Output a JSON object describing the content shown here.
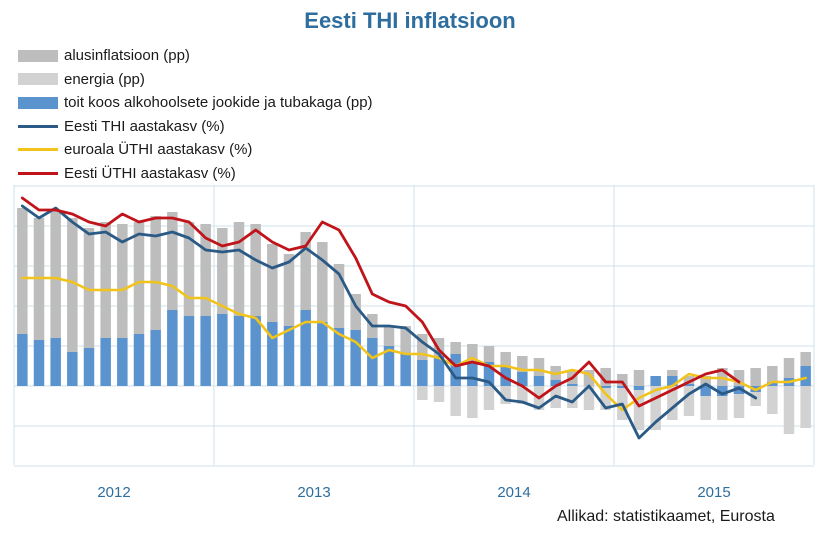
{
  "colors": {
    "core": "#bdbdbd",
    "energy": "#d2d2d2",
    "food": "#5b93cf",
    "est_cpi": "#2a5a85",
    "ea_hicp": "#f2c31a",
    "est_hicp": "#c0141a",
    "grid": "#cfe0ea",
    "axis_text": "#2e6e9e"
  },
  "source": "Allikad: statistikaamet, Eurosta",
  "chart_data": {
    "type": "bar+line",
    "title": "Eesti THI inflatsioon",
    "x_labels": [
      "2012",
      "2013",
      "2014",
      "2015"
    ],
    "months": 48,
    "ylim": [
      -2,
      5
    ],
    "legend": [
      {
        "key": "core",
        "label": "alusinflatsioon (pp)",
        "kind": "bar"
      },
      {
        "key": "energy",
        "label": "energia (pp)",
        "kind": "bar"
      },
      {
        "key": "food",
        "label": "toit koos alkohoolsete jookide ja tubakaga (pp)",
        "kind": "bar"
      },
      {
        "key": "est_cpi",
        "label": "Eesti THI aastakasv (%)",
        "kind": "line"
      },
      {
        "key": "ea_hicp",
        "label": "euroala ÜTHI aastakasv (%)",
        "kind": "line"
      },
      {
        "key": "est_hicp",
        "label": "Eesti ÜTHI aastakasv (%)",
        "kind": "line"
      }
    ],
    "series": [
      {
        "name": "toit koos alkohoolsete jookide ja tubakaga (pp)",
        "key": "food",
        "values": [
          1.3,
          1.15,
          1.2,
          0.85,
          0.95,
          1.2,
          1.2,
          1.3,
          1.4,
          1.9,
          1.75,
          1.75,
          1.8,
          1.75,
          1.75,
          1.6,
          1.5,
          1.9,
          1.6,
          1.45,
          1.4,
          1.2,
          1.0,
          0.8,
          0.65,
          0.75,
          0.8,
          0.6,
          0.6,
          0.5,
          0.35,
          0.25,
          0.15,
          0.05,
          0.0,
          -0.05,
          -0.05,
          -0.1,
          0.25,
          0.25,
          0.05,
          -0.25,
          -0.25,
          -0.2,
          -0.15,
          0.1,
          0.2,
          0.5
        ]
      },
      {
        "name": "alusinflatsioon (pp)",
        "key": "core",
        "values": [
          3.15,
          3.05,
          3.2,
          3.35,
          3.0,
          2.9,
          2.85,
          2.8,
          2.85,
          2.45,
          2.35,
          2.3,
          2.15,
          2.35,
          2.3,
          1.95,
          1.8,
          1.95,
          2.0,
          1.6,
          0.9,
          0.6,
          0.5,
          0.7,
          0.65,
          0.45,
          0.3,
          0.45,
          0.4,
          0.35,
          0.4,
          0.45,
          0.35,
          0.35,
          0.4,
          0.45,
          0.3,
          0.4,
          0.0,
          0.15,
          0.2,
          0.25,
          0.45,
          0.4,
          0.45,
          0.4,
          0.5,
          0.35
        ]
      },
      {
        "name": "energia (pp)",
        "key": "energy",
        "values": [
          0.0,
          0.0,
          0.0,
          0.0,
          0.0,
          0.0,
          0.0,
          0.0,
          0.0,
          0.0,
          0.0,
          0.0,
          0.0,
          0.0,
          0.0,
          0.0,
          0.0,
          0.0,
          0.0,
          0.0,
          0.0,
          0.0,
          0.0,
          0.0,
          -0.35,
          -0.4,
          -0.75,
          -0.8,
          -0.6,
          -0.45,
          -0.45,
          -0.6,
          -0.55,
          -0.55,
          -0.6,
          -0.55,
          -0.8,
          -1.0,
          -1.1,
          -0.85,
          -0.75,
          -0.6,
          -0.6,
          -0.6,
          -0.35,
          -0.7,
          -1.2,
          -1.05
        ]
      },
      {
        "name": "Eesti THI aastakasv (%)",
        "key": "est_cpi",
        "values": [
          4.5,
          4.2,
          4.45,
          4.1,
          3.8,
          3.85,
          3.6,
          3.8,
          3.75,
          3.85,
          3.7,
          3.4,
          3.35,
          3.4,
          3.15,
          2.95,
          3.1,
          3.45,
          3.15,
          2.8,
          2.0,
          1.5,
          1.5,
          1.45,
          1.1,
          0.8,
          0.2,
          0.2,
          0.1,
          -0.35,
          -0.4,
          -0.55,
          -0.25,
          -0.4,
          0.0,
          -0.55,
          -0.45,
          -1.3,
          -0.9,
          -0.55,
          -0.2,
          0.05,
          -0.2,
          -0.05,
          -0.3
        ]
      },
      {
        "name": "euroala ÜTHI aastakasv (%)",
        "key": "ea_hicp",
        "values": [
          2.7,
          2.7,
          2.7,
          2.6,
          2.4,
          2.4,
          2.4,
          2.6,
          2.6,
          2.5,
          2.2,
          2.2,
          2.0,
          1.8,
          1.7,
          1.2,
          1.4,
          1.6,
          1.6,
          1.3,
          1.1,
          0.7,
          0.9,
          0.8,
          0.8,
          0.7,
          0.5,
          0.7,
          0.5,
          0.5,
          0.4,
          0.4,
          0.3,
          0.4,
          0.3,
          -0.2,
          -0.6,
          -0.3,
          -0.1,
          0.0,
          0.3,
          0.2,
          0.2,
          0.1,
          -0.1,
          0.1,
          0.1,
          0.2
        ]
      },
      {
        "name": "Eesti ÜTHI aastakasv (%)",
        "key": "est_hicp",
        "values": [
          4.7,
          4.4,
          4.4,
          4.3,
          4.1,
          4.0,
          4.3,
          4.1,
          4.2,
          4.2,
          4.1,
          3.7,
          3.5,
          3.6,
          3.9,
          3.6,
          3.4,
          3.5,
          4.1,
          3.9,
          3.2,
          2.3,
          2.1,
          2.0,
          1.6,
          0.9,
          0.5,
          0.6,
          0.5,
          0.2,
          0.0,
          -0.3,
          0.0,
          0.2,
          0.6,
          0.1,
          0.1,
          -0.5,
          -0.3,
          -0.1,
          0.1,
          0.3,
          0.4,
          0.1
        ]
      }
    ]
  }
}
